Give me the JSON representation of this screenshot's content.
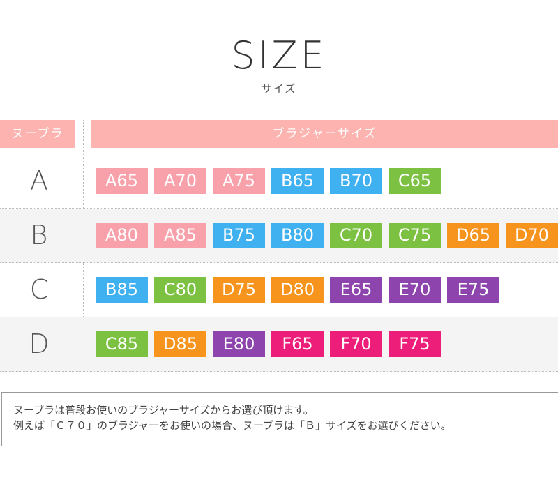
{
  "title": "SIZE",
  "subtitle": "サイズ",
  "headers": {
    "left": "ヌーブラ",
    "right": "ブラジャーサイズ"
  },
  "colors": {
    "A": "#f8a1ab",
    "B": "#3fb0f0",
    "C": "#7cc142",
    "D": "#f7941d",
    "E": "#8e44ad",
    "F": "#ec1e79",
    "header": "#fdb3b0"
  },
  "rows": [
    {
      "label": "A",
      "sizes": [
        "A65",
        "A70",
        "A75",
        "B65",
        "B70",
        "C65"
      ]
    },
    {
      "label": "B",
      "sizes": [
        "A80",
        "A85",
        "B75",
        "B80",
        "C70",
        "C75",
        "D65",
        "D70"
      ]
    },
    {
      "label": "C",
      "sizes": [
        "B85",
        "C80",
        "D75",
        "D80",
        "E65",
        "E70",
        "E75"
      ]
    },
    {
      "label": "D",
      "sizes": [
        "C85",
        "D85",
        "E80",
        "F65",
        "F70",
        "F75"
      ]
    }
  ],
  "note": {
    "line1": "ヌーブラは普段お使いのブラジャーサイズからお選び頂けます。",
    "line2": "例えば「Ｃ７０」のブラジャーをお使いの場合、ヌーブラは「Ｂ」サイズをお選びください。"
  }
}
